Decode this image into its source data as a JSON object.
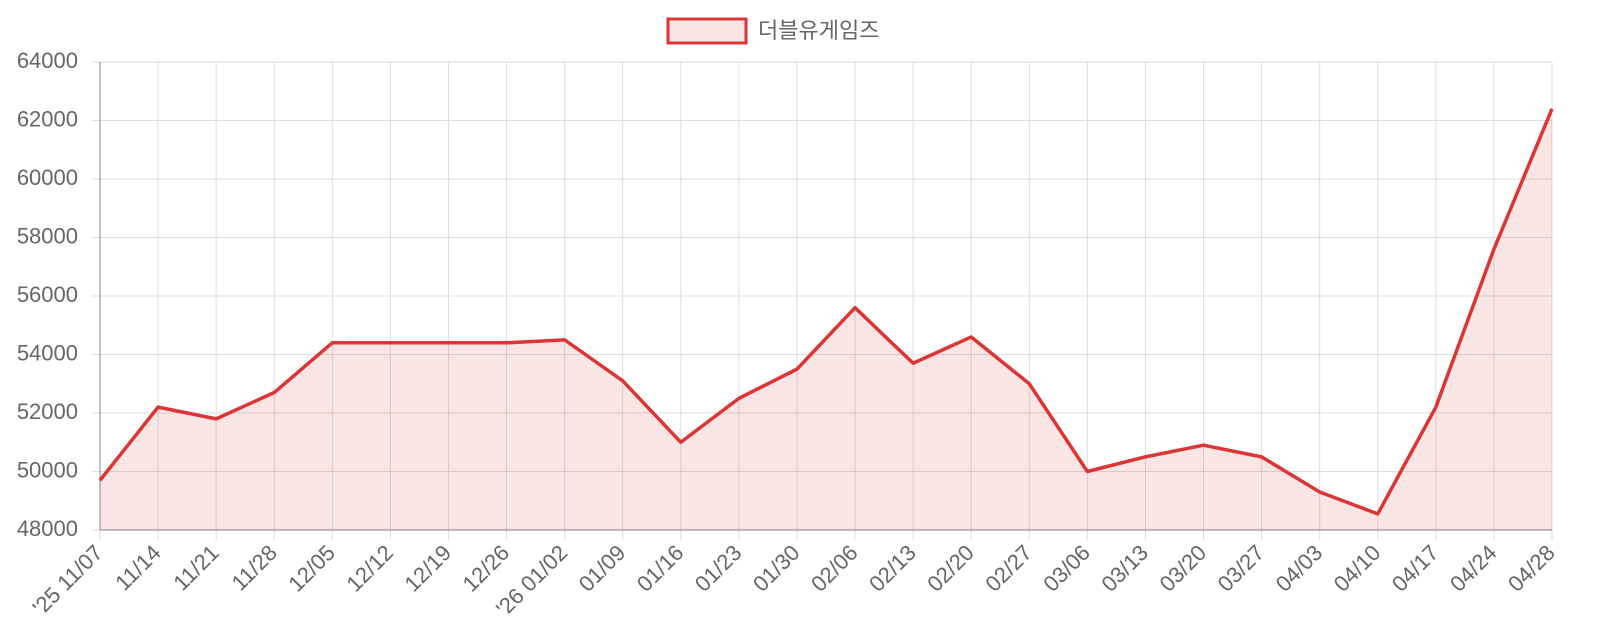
{
  "chart_data": {
    "type": "line",
    "categories": [
      "'25 11/07",
      "11/14",
      "11/21",
      "11/28",
      "12/05",
      "12/12",
      "12/19",
      "12/26",
      "'26 01/02",
      "01/09",
      "01/16",
      "01/23",
      "01/30",
      "02/06",
      "02/13",
      "02/20",
      "02/27",
      "03/06",
      "03/13",
      "03/20",
      "03/27",
      "04/03",
      "04/10",
      "04/17",
      "04/24",
      "04/28"
    ],
    "series": [
      {
        "name": "더블유게임즈",
        "color": "#dc3535",
        "fill": "rgba(220,53,53,0.13)",
        "values": [
          49700,
          52200,
          51800,
          52700,
          54400,
          54400,
          54400,
          54400,
          54500,
          53100,
          51000,
          52500,
          53500,
          55600,
          53700,
          54600,
          53000,
          50000,
          50500,
          50900,
          50500,
          49300,
          48550,
          52200,
          57600,
          62400
        ]
      }
    ],
    "ylim": [
      48000,
      64000
    ],
    "yticks": [
      48000,
      50000,
      52000,
      54000,
      56000,
      58000,
      60000,
      62000,
      64000
    ],
    "grid": true,
    "legend": "top"
  }
}
